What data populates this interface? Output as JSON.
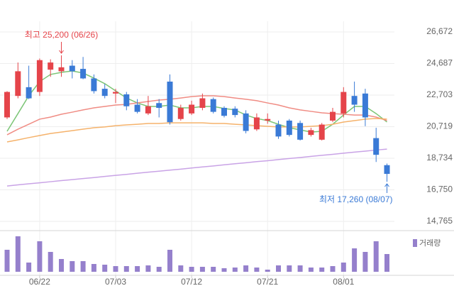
{
  "chart_data": {
    "type": "candlestick",
    "categories": [
      null,
      null,
      null,
      "06/22",
      null,
      null,
      null,
      null,
      null,
      null,
      "07/03",
      null,
      null,
      null,
      null,
      null,
      null,
      "07/12",
      null,
      null,
      null,
      null,
      null,
      null,
      "07/21",
      null,
      null,
      null,
      null,
      null,
      null,
      "08/01",
      null,
      null,
      null,
      null
    ],
    "open": [
      21300,
      22650,
      23200,
      22900,
      24300,
      24200,
      24550,
      24350,
      23750,
      23100,
      22800,
      22750,
      22100,
      21550,
      22200,
      23550,
      21200,
      21550,
      21900,
      22450,
      21900,
      21850,
      21550,
      20550,
      21100,
      20850,
      21100,
      20950,
      20200,
      19900,
      21100,
      21550,
      22650,
      22800,
      20000,
      18300
    ],
    "high": [
      22950,
      24750,
      24550,
      25000,
      24950,
      25200,
      24900,
      25100,
      24000,
      23400,
      23100,
      22900,
      22450,
      22650,
      22450,
      24000,
      22100,
      22350,
      22800,
      22550,
      22000,
      22000,
      21750,
      21550,
      21550,
      21100,
      21200,
      21100,
      20650,
      20950,
      21900,
      23200,
      23550,
      23100,
      20650,
      18400
    ],
    "low": [
      21200,
      22500,
      22450,
      22650,
      23850,
      23850,
      23750,
      23700,
      22800,
      22500,
      22200,
      21750,
      21550,
      21450,
      21300,
      20850,
      21100,
      21450,
      21750,
      21550,
      21300,
      21300,
      20300,
      20450,
      20900,
      19950,
      20100,
      19850,
      20100,
      19850,
      21000,
      21300,
      21650,
      20750,
      18500,
      17260
    ],
    "close": [
      22900,
      24200,
      22500,
      24900,
      24750,
      24450,
      24200,
      23750,
      22950,
      22650,
      22900,
      22000,
      21650,
      22000,
      21900,
      21000,
      21900,
      22100,
      22500,
      21650,
      21400,
      21450,
      20450,
      21300,
      21200,
      20100,
      20200,
      19900,
      20500,
      20850,
      21650,
      22900,
      22100,
      21300,
      18950,
      17750
    ],
    "up_color": "#e5444a",
    "down_color": "#3a7ad6",
    "moving_averages": [
      {
        "color": "#7cc576",
        "values": [
          20430,
          21540,
          22660,
          23550,
          24000,
          24130,
          24220,
          24090,
          23770,
          23420,
          22970,
          22520,
          22210,
          21990,
          21990,
          22080,
          21900,
          21900,
          21990,
          21990,
          21860,
          21770,
          21450,
          21230,
          21100,
          20870,
          20650,
          20520,
          20380,
          20430,
          20870,
          21450,
          21990,
          21990,
          21540,
          21010
        ]
      },
      {
        "color": "#f08c84",
        "values": [
          20210,
          20560,
          20870,
          21190,
          21320,
          21500,
          21630,
          21770,
          21900,
          21990,
          22080,
          22120,
          22210,
          22300,
          22390,
          22440,
          22520,
          22610,
          22660,
          22660,
          22610,
          22520,
          22440,
          22350,
          22210,
          22080,
          21900,
          21770,
          21680,
          21590,
          21540,
          21500,
          21450,
          21450,
          21320,
          21100
        ]
      },
      {
        "color": "#f5b26b",
        "values": [
          19760,
          19890,
          20030,
          20160,
          20290,
          20380,
          20470,
          20560,
          20650,
          20700,
          20780,
          20830,
          20870,
          20920,
          20920,
          20960,
          20960,
          20960,
          20960,
          20920,
          20920,
          20870,
          20830,
          20780,
          20740,
          20700,
          20700,
          20700,
          20740,
          20780,
          20870,
          21010,
          21100,
          21190,
          21230,
          21190
        ]
      },
      {
        "color": "#c9a3e6",
        "values": [
          16990,
          17060,
          17130,
          17190,
          17260,
          17330,
          17390,
          17460,
          17520,
          17590,
          17660,
          17720,
          17790,
          17860,
          17920,
          17990,
          18050,
          18120,
          18190,
          18250,
          18320,
          18390,
          18450,
          18520,
          18580,
          18650,
          18720,
          18780,
          18850,
          18920,
          18980,
          19050,
          19120,
          19180,
          19250,
          19310
        ]
      }
    ],
    "volume": {
      "name": "거래량",
      "color": "#9580cc",
      "ylim": [
        0,
        550000
      ],
      "values": [
        310000,
        500000,
        130000,
        430000,
        280000,
        180000,
        150000,
        150000,
        110000,
        100000,
        80000,
        80000,
        80000,
        90000,
        70000,
        310000,
        90000,
        70000,
        70000,
        70000,
        50000,
        60000,
        90000,
        60000,
        30000,
        90000,
        90000,
        90000,
        60000,
        60000,
        80000,
        130000,
        330000,
        280000,
        430000,
        250000
      ]
    },
    "ylim": [
      14320,
      27340
    ],
    "yticks": [
      {
        "value": 14765,
        "label": "14,765"
      },
      {
        "value": 16750,
        "label": "16,750"
      },
      {
        "value": 18734,
        "label": "18,734"
      },
      {
        "value": 20719,
        "label": "20,719"
      },
      {
        "value": 22703,
        "label": "22,703"
      },
      {
        "value": 24687,
        "label": "24,687"
      },
      {
        "value": 26672,
        "label": "26,672"
      }
    ],
    "grid": true,
    "high_label": "최고 25,200 (06/26)",
    "low_label": "최저 17,260 (08/07)"
  }
}
